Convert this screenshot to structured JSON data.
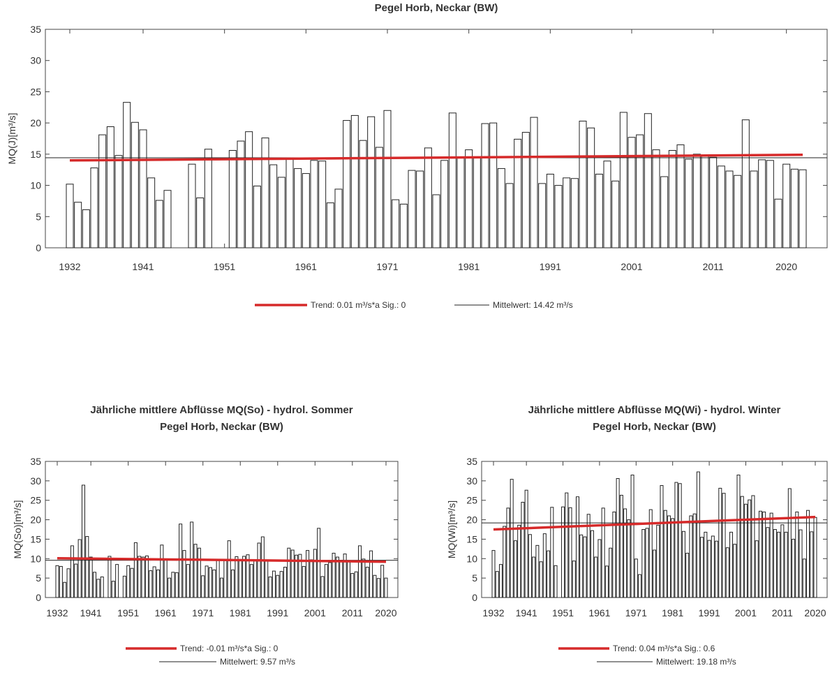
{
  "chart_data": [
    {
      "type": "bar",
      "title": [
        "Pegel Horb, Neckar (BW)"
      ],
      "ylabel": "MQ(J)[m³/s]",
      "xlabel": "",
      "ylim": [
        0,
        35
      ],
      "yticks": [
        0,
        5,
        10,
        15,
        20,
        25,
        30,
        35
      ],
      "xticks": [
        1932,
        1941,
        1951,
        1961,
        1971,
        1981,
        1991,
        2001,
        2011,
        2020
      ],
      "x_start": 1932,
      "values": [
        10.2,
        7.3,
        6.1,
        12.8,
        18.1,
        19.4,
        14.8,
        23.3,
        20.1,
        18.9,
        11.2,
        7.6,
        9.2,
        null,
        null,
        13.4,
        8.0,
        15.8,
        null,
        null,
        15.6,
        17.1,
        18.6,
        9.9,
        17.6,
        13.3,
        11.3,
        14.2,
        12.7,
        11.9,
        14.0,
        13.9,
        7.2,
        9.4,
        20.4,
        21.2,
        17.2,
        21.0,
        16.1,
        22.0,
        7.7,
        7.0,
        12.4,
        12.3,
        16.0,
        8.5,
        14.0,
        21.6,
        14.5,
        15.7,
        14.5,
        19.9,
        20.0,
        12.7,
        10.3,
        17.4,
        18.5,
        20.9,
        10.3,
        11.8,
        10.0,
        11.2,
        11.1,
        20.3,
        19.2,
        11.8,
        13.9,
        10.7,
        21.7,
        17.7,
        18.1,
        21.5,
        15.7,
        11.4,
        15.6,
        16.5,
        14.2,
        15.0,
        14.7,
        14.5,
        13.1,
        12.3,
        11.6,
        20.5,
        12.3,
        14.1,
        14.0,
        7.8,
        13.4,
        12.6,
        12.5
      ],
      "trend": {
        "start": 14.0,
        "end": 14.9,
        "color": "#d62a2a"
      },
      "mean": 14.42,
      "legend": [
        {
          "label": "Trend: 0.01 m³/s*a   Sig.: 0",
          "color": "#d62a2a"
        },
        {
          "label": "Mittelwert: 14.42 m³/s",
          "color": "#222222"
        }
      ]
    },
    {
      "type": "bar",
      "title": [
        "Jährliche mittlere Abflüsse MQ(So) - hydrol. Sommer",
        "Pegel Horb, Neckar (BW)"
      ],
      "ylabel": "MQ(So)[m³/s]",
      "xlabel": "",
      "ylim": [
        0,
        35
      ],
      "yticks": [
        0,
        5,
        10,
        15,
        20,
        25,
        30,
        35
      ],
      "xticks": [
        1932,
        1941,
        1951,
        1961,
        1971,
        1981,
        1991,
        2001,
        2011,
        2020
      ],
      "x_start": 1932,
      "values": [
        8.2,
        8.0,
        3.9,
        7.4,
        13.3,
        8.6,
        14.9,
        28.9,
        15.7,
        10.4,
        6.5,
        4.7,
        5.3,
        null,
        10.6,
        4.2,
        8.5,
        null,
        5.5,
        8.2,
        7.5,
        14.1,
        10.6,
        10.4,
        10.7,
        6.9,
        7.9,
        7.1,
        13.5,
        9.7,
        5.0,
        6.5,
        6.4,
        18.9,
        12.1,
        8.5,
        19.4,
        13.7,
        12.7,
        5.6,
        8.1,
        7.7,
        7.1,
        9.6,
        5.0,
        9.5,
        14.6,
        7.1,
        10.5,
        9.8,
        10.6,
        11.0,
        8.5,
        9.6,
        14.0,
        15.6,
        9.4,
        5.3,
        6.8,
        5.7,
        6.7,
        7.8,
        12.7,
        12.2,
        10.9,
        11.1,
        8.0,
        12.1,
        9.7,
        12.4,
        17.8,
        5.4,
        8.5,
        9.0,
        11.4,
        10.4,
        9.6,
        11.2,
        9.2,
        6.2,
        6.6,
        13.3,
        9.9,
        7.8,
        12.0,
        5.7,
        4.9,
        8.3,
        5.0
      ],
      "trend": {
        "start": 10.1,
        "end": 9.2,
        "color": "#d62a2a"
      },
      "mean": 9.57,
      "legend": [
        {
          "label": "Trend: -0.01 m³/s*a   Sig.: 0",
          "color": "#d62a2a"
        },
        {
          "label": "Mittelwert: 9.57 m³/s",
          "color": "#222222"
        }
      ]
    },
    {
      "type": "bar",
      "title": [
        "Jährliche mittlere Abflüsse MQ(Wi) - hydrol. Winter",
        "Pegel Horb, Neckar (BW)"
      ],
      "ylabel": "MQ(Wi)[m³/s]",
      "xlabel": "",
      "ylim": [
        0,
        35
      ],
      "yticks": [
        0,
        5,
        10,
        15,
        20,
        25,
        30,
        35
      ],
      "xticks": [
        1932,
        1941,
        1951,
        1961,
        1971,
        1981,
        1991,
        2001,
        2011,
        2020
      ],
      "x_start": 1932,
      "values": [
        12.1,
        6.7,
        8.5,
        18.3,
        23.0,
        30.4,
        14.6,
        18.6,
        24.5,
        27.6,
        16.2,
        10.4,
        13.4,
        9.2,
        16.4,
        12.0,
        23.2,
        8.2,
        null,
        23.3,
        26.9,
        23.1,
        9.4,
        25.9,
        16.1,
        15.6,
        21.4,
        17.2,
        10.4,
        14.9,
        23.0,
        8.1,
        12.7,
        22.0,
        30.6,
        26.3,
        22.8,
        20.0,
        31.5,
        9.9,
        5.9,
        17.5,
        17.8,
        22.6,
        12.2,
        18.6,
        28.8,
        22.4,
        21.0,
        20.3,
        29.6,
        29.3,
        17.0,
        11.4,
        21.0,
        21.5,
        32.3,
        15.5,
        16.8,
        14.7,
        15.8,
        14.5,
        28.1,
        26.8,
        12.8,
        16.8,
        13.7,
        31.5,
        26.0,
        24.0,
        25.1,
        26.2,
        14.6,
        22.2,
        22.0,
        18.0,
        21.7,
        17.5,
        16.8,
        18.7,
        16.8,
        28.0,
        15.0,
        22.0,
        17.4,
        9.9,
        22.4,
        16.9,
        20.6
      ],
      "trend": {
        "start": 17.5,
        "end": 20.7,
        "color": "#d62a2a"
      },
      "mean": 19.18,
      "legend": [
        {
          "label": "Trend: 0.04 m³/s*a   Sig.: 0.6",
          "color": "#d62a2a"
        },
        {
          "label": "Mittelwert: 19.18 m³/s",
          "color": "#222222"
        }
      ]
    }
  ]
}
